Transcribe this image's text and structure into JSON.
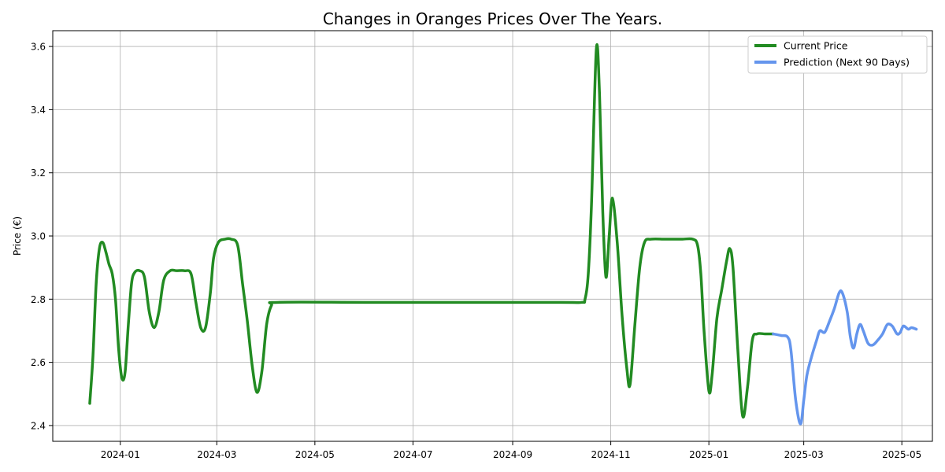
{
  "chart_data": {
    "type": "line",
    "title": "Changes in Oranges Prices Over The Years.",
    "xlabel": "",
    "ylabel": "Price (€)",
    "xlim": [
      "2023-11-20",
      "2025-05-20"
    ],
    "ylim": [
      2.35,
      3.65
    ],
    "x_ticks": [
      "2024-01",
      "2024-03",
      "2024-05",
      "2024-07",
      "2024-09",
      "2024-11",
      "2025-01",
      "2025-03",
      "2025-05"
    ],
    "y_ticks": [
      2.4,
      2.6,
      2.8,
      3.0,
      3.2,
      3.4,
      3.6
    ],
    "grid": true,
    "legend_position": "top-right",
    "series": [
      {
        "name": "Current Price",
        "color": "#228b22",
        "points": [
          [
            "2023-12-13",
            2.47
          ],
          [
            "2023-12-15",
            2.62
          ],
          [
            "2023-12-17",
            2.85
          ],
          [
            "2023-12-19",
            2.96
          ],
          [
            "2023-12-21",
            2.98
          ],
          [
            "2023-12-23",
            2.95
          ],
          [
            "2023-12-25",
            2.91
          ],
          [
            "2023-12-27",
            2.88
          ],
          [
            "2023-12-29",
            2.8
          ],
          [
            "2023-12-31",
            2.64
          ],
          [
            "2024-01-02",
            2.55
          ],
          [
            "2024-01-04",
            2.57
          ],
          [
            "2024-01-06",
            2.72
          ],
          [
            "2024-01-08",
            2.85
          ],
          [
            "2024-01-10",
            2.885
          ],
          [
            "2024-01-13",
            2.89
          ],
          [
            "2024-01-16",
            2.87
          ],
          [
            "2024-01-19",
            2.76
          ],
          [
            "2024-01-22",
            2.71
          ],
          [
            "2024-01-25",
            2.76
          ],
          [
            "2024-01-28",
            2.86
          ],
          [
            "2024-02-01",
            2.89
          ],
          [
            "2024-02-05",
            2.89
          ],
          [
            "2024-02-10",
            2.89
          ],
          [
            "2024-02-14",
            2.88
          ],
          [
            "2024-02-17",
            2.79
          ],
          [
            "2024-02-20",
            2.71
          ],
          [
            "2024-02-23",
            2.71
          ],
          [
            "2024-02-26",
            2.82
          ],
          [
            "2024-02-28",
            2.93
          ],
          [
            "2024-03-02",
            2.98
          ],
          [
            "2024-03-06",
            2.99
          ],
          [
            "2024-03-10",
            2.99
          ],
          [
            "2024-03-14",
            2.97
          ],
          [
            "2024-03-17",
            2.85
          ],
          [
            "2024-03-20",
            2.73
          ],
          [
            "2024-03-23",
            2.59
          ],
          [
            "2024-03-26",
            2.505
          ],
          [
            "2024-03-29",
            2.57
          ],
          [
            "2024-04-01",
            2.72
          ],
          [
            "2024-04-04",
            2.78
          ],
          [
            "2024-04-08",
            2.79
          ],
          [
            "2024-06-01",
            2.79
          ],
          [
            "2024-08-01",
            2.79
          ],
          [
            "2024-10-01",
            2.79
          ],
          [
            "2024-10-14",
            2.79
          ],
          [
            "2024-10-16",
            2.8
          ],
          [
            "2024-10-18",
            2.88
          ],
          [
            "2024-10-20",
            3.1
          ],
          [
            "2024-10-23",
            3.59
          ],
          [
            "2024-10-25",
            3.45
          ],
          [
            "2024-10-27",
            3.08
          ],
          [
            "2024-10-29",
            2.87
          ],
          [
            "2024-10-31",
            3.0
          ],
          [
            "2024-11-02",
            3.12
          ],
          [
            "2024-11-05",
            2.98
          ],
          [
            "2024-11-08",
            2.75
          ],
          [
            "2024-11-11",
            2.58
          ],
          [
            "2024-11-13",
            2.53
          ],
          [
            "2024-11-16",
            2.72
          ],
          [
            "2024-11-19",
            2.9
          ],
          [
            "2024-11-22",
            2.98
          ],
          [
            "2024-11-26",
            2.99
          ],
          [
            "2024-12-05",
            2.99
          ],
          [
            "2024-12-15",
            2.99
          ],
          [
            "2024-12-22",
            2.99
          ],
          [
            "2024-12-25",
            2.97
          ],
          [
            "2024-12-27",
            2.88
          ],
          [
            "2024-12-29",
            2.7
          ],
          [
            "2025-01-01",
            2.51
          ],
          [
            "2025-01-03",
            2.56
          ],
          [
            "2025-01-06",
            2.74
          ],
          [
            "2025-01-09",
            2.83
          ],
          [
            "2025-01-12",
            2.92
          ],
          [
            "2025-01-14",
            2.96
          ],
          [
            "2025-01-16",
            2.9
          ],
          [
            "2025-01-19",
            2.64
          ],
          [
            "2025-01-22",
            2.43
          ],
          [
            "2025-01-25",
            2.52
          ],
          [
            "2025-01-28",
            2.67
          ],
          [
            "2025-01-31",
            2.69
          ],
          [
            "2025-02-05",
            2.69
          ],
          [
            "2025-02-10",
            2.69
          ]
        ]
      },
      {
        "name": "Prediction (Next 90 Days)",
        "color": "#6495ed",
        "points": [
          [
            "2025-02-10",
            2.69
          ],
          [
            "2025-02-15",
            2.685
          ],
          [
            "2025-02-19",
            2.68
          ],
          [
            "2025-02-21",
            2.64
          ],
          [
            "2025-02-24",
            2.48
          ],
          [
            "2025-02-27",
            2.405
          ],
          [
            "2025-03-01",
            2.48
          ],
          [
            "2025-03-03",
            2.56
          ],
          [
            "2025-03-06",
            2.62
          ],
          [
            "2025-03-09",
            2.67
          ],
          [
            "2025-03-11",
            2.7
          ],
          [
            "2025-03-14",
            2.695
          ],
          [
            "2025-03-17",
            2.73
          ],
          [
            "2025-03-20",
            2.77
          ],
          [
            "2025-03-23",
            2.82
          ],
          [
            "2025-03-25",
            2.82
          ],
          [
            "2025-03-28",
            2.76
          ],
          [
            "2025-03-30",
            2.68
          ],
          [
            "2025-04-01",
            2.645
          ],
          [
            "2025-04-03",
            2.69
          ],
          [
            "2025-04-05",
            2.72
          ],
          [
            "2025-04-07",
            2.7
          ],
          [
            "2025-04-10",
            2.66
          ],
          [
            "2025-04-13",
            2.655
          ],
          [
            "2025-04-16",
            2.67
          ],
          [
            "2025-04-19",
            2.69
          ],
          [
            "2025-04-22",
            2.72
          ],
          [
            "2025-04-25",
            2.715
          ],
          [
            "2025-04-28",
            2.69
          ],
          [
            "2025-04-30",
            2.695
          ],
          [
            "2025-05-02",
            2.715
          ],
          [
            "2025-05-05",
            2.705
          ],
          [
            "2025-05-07",
            2.71
          ],
          [
            "2025-05-10",
            2.705
          ]
        ]
      }
    ]
  }
}
